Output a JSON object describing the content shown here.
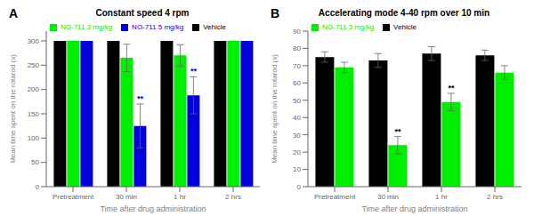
{
  "chart_data": [
    {
      "type": "bar",
      "title": "Constant speed 4 rpm",
      "x_label": "Time after drug administration",
      "y_label": "Mean time spent on the rotarod (s)",
      "categories": [
        "Pretreatment",
        "30 min",
        "1 hr",
        "2 hrs"
      ],
      "series": [
        {
          "name": "Vehicle",
          "color": "#000000",
          "values": [
            300,
            300,
            300,
            300
          ],
          "errors": [
            0,
            0,
            0,
            0
          ]
        },
        {
          "name": "NO-711 3 mg/kg",
          "color": "#00ee00",
          "values": [
            300,
            265,
            270,
            300
          ],
          "errors": [
            0,
            28,
            22,
            0
          ]
        },
        {
          "name": "NO-711 5 mg/kg",
          "color": "#0000dd",
          "values": [
            300,
            125,
            188,
            300
          ],
          "errors": [
            0,
            45,
            38,
            0
          ]
        }
      ],
      "annotations": [
        {
          "text": "A"
        },
        {
          "text": "**",
          "category": "30 min",
          "series": "NO-711 5 mg/kg",
          "color": "#0000dd"
        },
        {
          "text": "**",
          "category": "1 hr",
          "series": "NO-711 5 mg/kg",
          "color": "#0000dd"
        }
      ],
      "ylim": [
        0,
        320
      ],
      "yticks": [
        0,
        50,
        100,
        150,
        200,
        250,
        300
      ],
      "legend": "upper left",
      "grid": false
    },
    {
      "type": "bar",
      "title": "Accelerating mode 4-40 rpm over 10 min",
      "x_label": "Time after drug administration",
      "y_label": "Mean time spent on the rotarod (s)",
      "categories": [
        "Pretreatment",
        "30 min",
        "1 hr",
        "2 hrs"
      ],
      "series": [
        {
          "name": "Vehicle",
          "color": "#000000",
          "values": [
            75,
            73,
            77,
            76
          ],
          "errors": [
            3,
            4,
            4,
            3
          ]
        },
        {
          "name": "NO-711 3 mg/kg",
          "color": "#00ee00",
          "values": [
            69,
            24,
            49,
            66
          ],
          "errors": [
            3,
            5,
            5,
            4
          ]
        }
      ],
      "annotations": [
        {
          "text": "B"
        },
        {
          "text": "**",
          "category": "30 min",
          "series": "NO-711 3 mg/kg",
          "color": "#000000"
        },
        {
          "text": "**",
          "category": "1 hr",
          "series": "NO-711 3 mg/kg",
          "color": "#000000"
        }
      ],
      "ylim": [
        0,
        90
      ],
      "yticks": [
        0,
        10,
        20,
        30,
        40,
        50,
        60,
        70,
        80,
        90
      ],
      "legend": "upper left",
      "grid": false
    }
  ]
}
